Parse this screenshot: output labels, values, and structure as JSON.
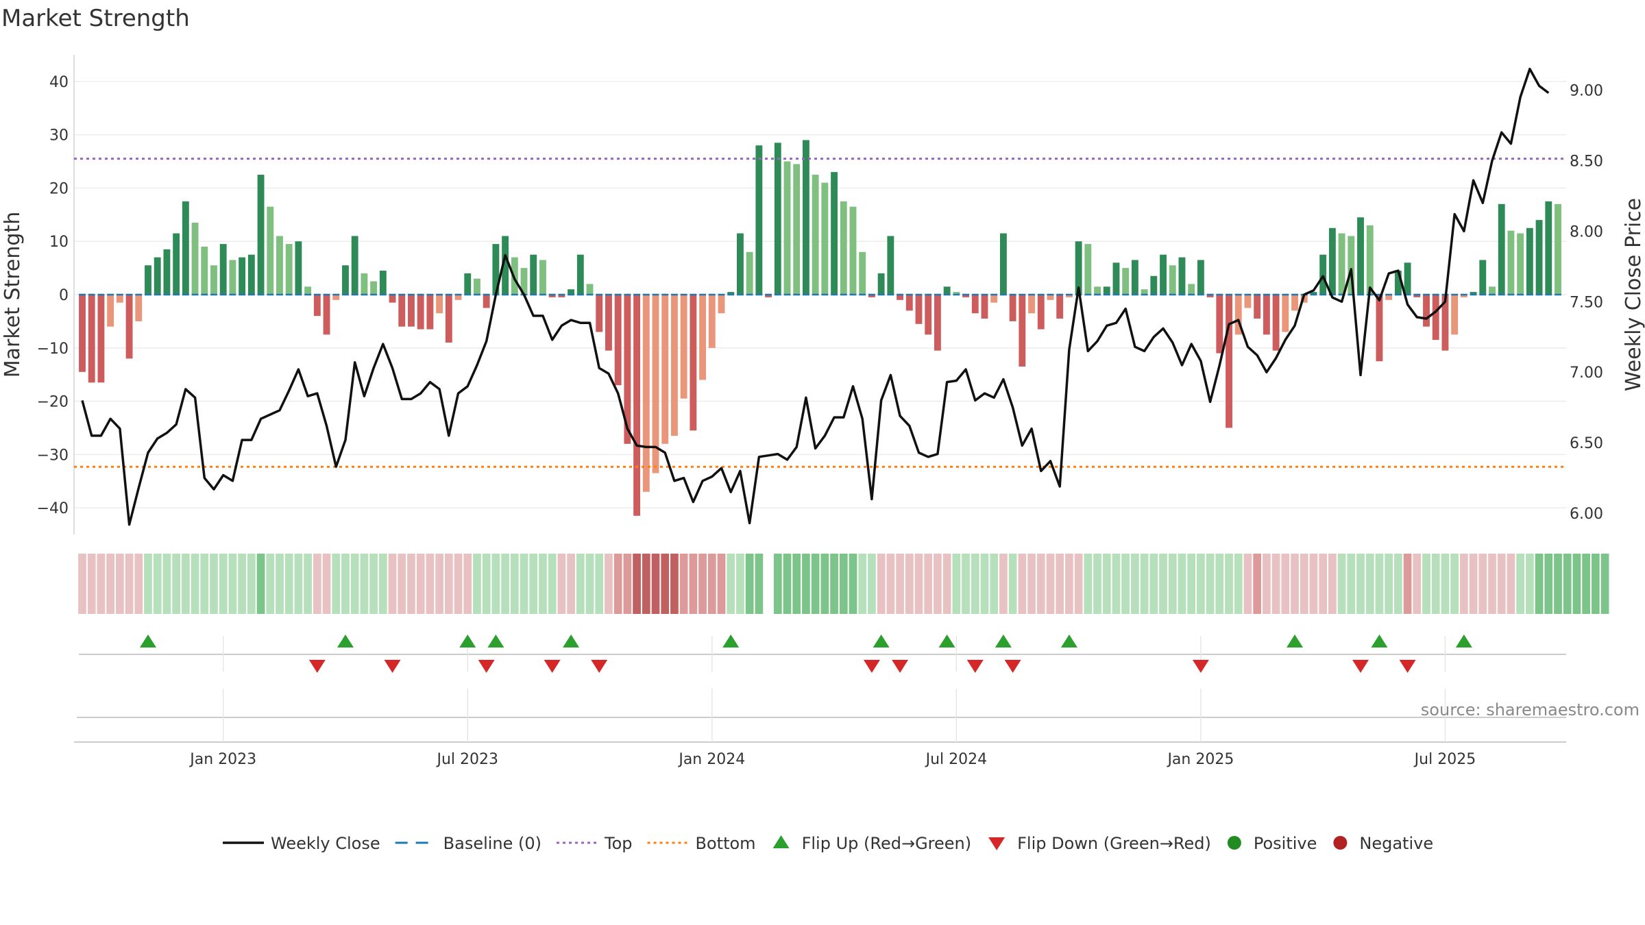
{
  "chart_data": {
    "type": "bar",
    "title": "Market Strength",
    "ylabel_left": "Market Strength",
    "ylabel_right": "Weekly Close Price",
    "ylim_left": [
      -45,
      45
    ],
    "ylim_right": [
      5.85,
      9.25
    ],
    "y_ticks_left": [
      "40",
      "30",
      "20",
      "10",
      "0",
      "−10",
      "−20",
      "−30",
      "−40"
    ],
    "y_ticks_right": [
      "9.00",
      "8.50",
      "8.00",
      "7.50",
      "7.00",
      "6.50",
      "6.00"
    ],
    "x_ticks": [
      "Jan 2023",
      "Jul 2023",
      "Jan 2024",
      "Jul 2024",
      "Jan 2025",
      "Jul 2025"
    ],
    "x_tick_weeks": [
      15,
      41,
      67,
      93,
      119,
      145
    ],
    "top_line": 25.5,
    "bottom_line": -32.3,
    "source": "source: sharemaestro.com",
    "legend": [
      "Weekly Close",
      "Baseline (0)",
      "Top",
      "Bottom",
      "Flip Up (Red→Green)",
      "Flip Down (Green→Red)",
      "Positive",
      "Negative"
    ],
    "colors": {
      "dark_green": "#2e8b57",
      "light_green": "#7fbf7f",
      "dark_red": "#cd5c5c",
      "light_red": "#e9967a",
      "price": "#111111",
      "baseline": "#1f77b4",
      "top": "#9467bd",
      "bottom": "#ff7f0e",
      "flip_up": "#2ca02c",
      "flip_down": "#d62728",
      "positive": "#228b22",
      "negative": "#b22222"
    },
    "series": [
      {
        "name": "Market Strength",
        "values": [
          -14.5,
          -16.5,
          -16.5,
          -6,
          -1.5,
          -12,
          -5,
          5.5,
          7,
          8.5,
          11.5,
          17.5,
          13.5,
          9,
          5.5,
          9.5,
          6.5,
          7,
          7.5,
          22.5,
          16.5,
          11,
          9.5,
          10,
          1.5,
          -4,
          -7.5,
          -1,
          5.5,
          11,
          4,
          2.5,
          4.5,
          -1.5,
          -6,
          -6,
          -6.5,
          -6.5,
          -3.5,
          -9,
          -1,
          4,
          3,
          -2.5,
          9.5,
          11,
          7,
          5,
          7.5,
          6.5,
          -0.5,
          -0.5,
          1,
          7.5,
          2,
          -7,
          -10.5,
          -17,
          -28,
          -41.5,
          -37,
          -33.5,
          -28,
          -26.5,
          -19.5,
          -25.5,
          -16,
          -10,
          -3.5,
          0.5,
          11.5,
          8,
          28,
          -0.5,
          28.5,
          25,
          24.5,
          29,
          22.5,
          21,
          23,
          17.5,
          16.5,
          8,
          -0.5,
          4,
          11,
          -1,
          -3,
          -5.5,
          -7.5,
          -10.5,
          1.5,
          0.5,
          -0.5,
          -3.5,
          -4.5,
          -1.5,
          11.5,
          -5,
          -13.5,
          -3.5,
          -6.5,
          -1,
          -4.5,
          -0.5,
          10,
          9.5,
          1.5,
          1.5,
          6,
          5,
          6.5,
          1,
          3.5,
          7.5,
          5.5,
          7,
          2,
          6.5,
          -0.5,
          -11,
          -25,
          -7.5,
          -2.5,
          -4.5,
          -7.5,
          -10.5,
          -7,
          -3,
          -1.5,
          0.5,
          7.5,
          12.5,
          11.5,
          11,
          14.5,
          13,
          -12.5,
          -1,
          4.5,
          6,
          -0.5,
          -6,
          -8.5,
          -10.5,
          -7.5,
          -0.5,
          0.5,
          6.5,
          1.5,
          17,
          12,
          11.5,
          12.5,
          14,
          17.5,
          17
        ]
      },
      {
        "name": "Weekly Close",
        "values": [
          6.8,
          6.55,
          6.55,
          6.67,
          6.6,
          5.92,
          6.18,
          6.43,
          6.53,
          6.57,
          6.63,
          6.88,
          6.82,
          6.25,
          6.17,
          6.27,
          6.23,
          6.52,
          6.52,
          6.67,
          6.7,
          6.73,
          6.87,
          7.02,
          6.83,
          6.85,
          6.62,
          6.33,
          6.52,
          7.07,
          6.83,
          7.03,
          7.2,
          7.03,
          6.81,
          6.81,
          6.85,
          6.93,
          6.88,
          6.55,
          6.85,
          6.9,
          7.05,
          7.22,
          7.55,
          7.83,
          7.66,
          7.55,
          7.4,
          7.4,
          7.23,
          7.33,
          7.37,
          7.35,
          7.35,
          7.03,
          6.99,
          6.85,
          6.6,
          6.48,
          6.47,
          6.47,
          6.43,
          6.23,
          6.25,
          6.08,
          6.23,
          6.26,
          6.32,
          6.15,
          6.3,
          5.93,
          6.4,
          6.41,
          6.42,
          6.38,
          6.47,
          6.82,
          6.46,
          6.55,
          6.68,
          6.68,
          6.9,
          6.67,
          6.1,
          6.8,
          6.98,
          6.69,
          6.62,
          6.43,
          6.4,
          6.42,
          6.93,
          6.94,
          7.02,
          6.8,
          6.85,
          6.82,
          6.95,
          6.75,
          6.48,
          6.6,
          6.3,
          6.37,
          6.19,
          7.16,
          7.6,
          7.15,
          7.22,
          7.33,
          7.35,
          7.45,
          7.18,
          7.15,
          7.25,
          7.31,
          7.21,
          7.05,
          7.2,
          7.08,
          6.79,
          7.05,
          7.34,
          7.37,
          7.18,
          7.12,
          7.0,
          7.1,
          7.23,
          7.33,
          7.55,
          7.58,
          7.68,
          7.53,
          7.5,
          7.73,
          6.98,
          7.6,
          7.51,
          7.7,
          7.72,
          7.48,
          7.39,
          7.38,
          7.43,
          7.5,
          8.12,
          8.0,
          8.36,
          8.2,
          8.5,
          8.7,
          8.62,
          8.95,
          9.15,
          9.03,
          8.98
        ]
      },
      {
        "name": "Strength Strip",
        "values": [
          -10,
          -10,
          -10,
          -10,
          -10,
          -10,
          -10,
          3,
          3,
          3,
          3,
          3,
          3,
          3,
          3,
          3,
          3,
          3,
          3,
          6,
          3,
          3,
          3,
          3,
          3,
          -10,
          -10,
          3,
          3,
          3,
          3,
          3,
          3,
          -10,
          -10,
          -10,
          -10,
          -10,
          -10,
          -10,
          -10,
          -10,
          3,
          3,
          3,
          3,
          3,
          3,
          3,
          3,
          3,
          -10,
          -10,
          3,
          3,
          3,
          -10,
          -20,
          -20,
          -30,
          -30,
          -30,
          -30,
          -30,
          -20,
          -20,
          -20,
          -20,
          -20,
          3,
          3,
          6,
          6,
          0,
          6,
          6,
          6,
          6,
          6,
          6,
          6,
          6,
          6,
          3,
          3,
          -10,
          -10,
          -10,
          -10,
          -10,
          -10,
          -10,
          -10,
          3,
          3,
          3,
          3,
          3,
          -10,
          3,
          -10,
          -10,
          -10,
          -10,
          -10,
          -10,
          -10,
          3,
          3,
          3,
          3,
          3,
          3,
          3,
          3,
          3,
          3,
          3,
          3,
          3,
          3,
          3,
          3,
          3,
          -10,
          -20,
          -10,
          -10,
          -10,
          -10,
          -10,
          -10,
          -10,
          -10,
          3,
          3,
          3,
          3,
          3,
          3,
          3,
          -20,
          -10,
          3,
          3,
          3,
          3,
          -10,
          -10,
          -10,
          -10,
          -10,
          -10,
          3,
          3,
          6,
          6,
          6,
          6,
          6,
          6,
          6,
          6
        ]
      },
      {
        "name": "Flip Up (Red→Green)",
        "weeks": [
          7,
          28,
          41,
          44,
          52,
          69,
          85,
          92,
          98,
          105,
          129,
          138,
          147
        ]
      },
      {
        "name": "Flip Down (Green→Red)",
        "weeks": [
          25,
          33,
          43,
          50,
          55,
          84,
          87,
          95,
          99,
          119,
          136,
          141
        ]
      }
    ]
  }
}
